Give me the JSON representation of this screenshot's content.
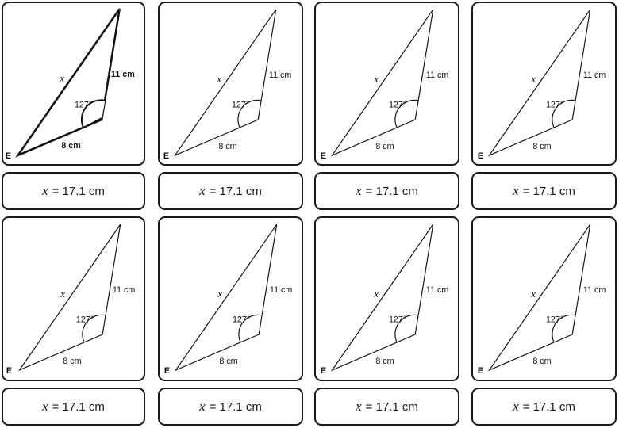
{
  "cards": [
    {
      "labels": {
        "vertex": "E",
        "side_long": "x",
        "side_a": "11 cm",
        "side_b": "8 cm",
        "angle": "127°"
      },
      "answer": {
        "variable": "x",
        "rest": "= 17.1 cm"
      }
    },
    {
      "labels": {
        "vertex": "E",
        "side_long": "x",
        "side_a": "11 cm",
        "side_b": "8 cm",
        "angle": "127°"
      },
      "answer": {
        "variable": "x",
        "rest": "= 17.1 cm"
      }
    },
    {
      "labels": {
        "vertex": "E",
        "side_long": "x",
        "side_a": "11 cm",
        "side_b": "8 cm",
        "angle": "127°"
      },
      "answer": {
        "variable": "x",
        "rest": "= 17.1 cm"
      }
    },
    {
      "labels": {
        "vertex": "E",
        "side_long": "x",
        "side_a": "11 cm",
        "side_b": "8 cm",
        "angle": "127°"
      },
      "answer": {
        "variable": "x",
        "rest": "= 17.1 cm"
      }
    },
    {
      "labels": {
        "vertex": "E",
        "side_long": "x",
        "side_a": "11 cm",
        "side_b": "8 cm",
        "angle": "127°"
      },
      "answer": {
        "variable": "x",
        "rest": "= 17.1 cm"
      }
    },
    {
      "labels": {
        "vertex": "E",
        "side_long": "x",
        "side_a": "11 cm",
        "side_b": "8 cm",
        "angle": "127°"
      },
      "answer": {
        "variable": "x",
        "rest": "= 17.1 cm"
      }
    },
    {
      "labels": {
        "vertex": "E",
        "side_long": "x",
        "side_a": "11 cm",
        "side_b": "8 cm",
        "angle": "127°"
      },
      "answer": {
        "variable": "x",
        "rest": "= 17.1 cm"
      }
    },
    {
      "labels": {
        "vertex": "E",
        "side_long": "x",
        "side_a": "11 cm",
        "side_b": "8 cm",
        "angle": "127°"
      },
      "answer": {
        "variable": "x",
        "rest": "= 17.1 cm"
      }
    }
  ]
}
